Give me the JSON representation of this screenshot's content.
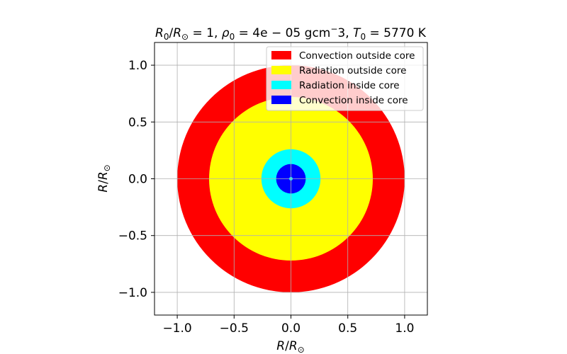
{
  "chart_data": {
    "type": "scatter",
    "title_parts": {
      "r_label": "R",
      "r_sub": "0",
      "sep1": "/",
      "rsun_label": "R",
      "sun_symbol": "⊙",
      "r_value": " = 1, ",
      "rho_label": "ρ",
      "rho_sub": "0",
      "rho_value": " = 4e − 05 gcm",
      "rho_exp": "−",
      "rho_exp_after": "3, ",
      "t_label": "T",
      "t_sub": "0",
      "t_value": " = 5770 K"
    },
    "xlabel": {
      "main": "R",
      "sep": "/",
      "den": "R",
      "sun": "⊙"
    },
    "ylabel": {
      "main": "R",
      "sep": "/",
      "den": "R",
      "sun": "⊙"
    },
    "xlim": [
      -1.2,
      1.2
    ],
    "ylim": [
      -1.2,
      1.2
    ],
    "xticks": [
      -1.0,
      -0.5,
      0.0,
      0.5,
      1.0
    ],
    "yticks": [
      -1.0,
      -0.5,
      0.0,
      0.5,
      1.0
    ],
    "xtick_labels": [
      "−1.0",
      "−0.5",
      "0.0",
      "0.5",
      "1.0"
    ],
    "ytick_labels": [
      "−1.0",
      "−0.5",
      "0.0",
      "0.5",
      "1.0"
    ],
    "grid": true,
    "legend_position": "top-right",
    "series": [
      {
        "name": "Convection outside core",
        "color": "#ff0000",
        "r_inner": 0.72,
        "r_outer": 1.0
      },
      {
        "name": "Radiation outside core",
        "color": "#ffff00",
        "r_inner": 0.26,
        "r_outer": 0.72
      },
      {
        "name": "Radiation inside core",
        "color": "#00ffff",
        "r_inner": 0.13,
        "r_outer": 0.26
      },
      {
        "name": "Convection inside core",
        "color": "#0000ff",
        "r_inner": 0.015,
        "r_outer": 0.13
      }
    ],
    "center_color": "#00ffff"
  }
}
